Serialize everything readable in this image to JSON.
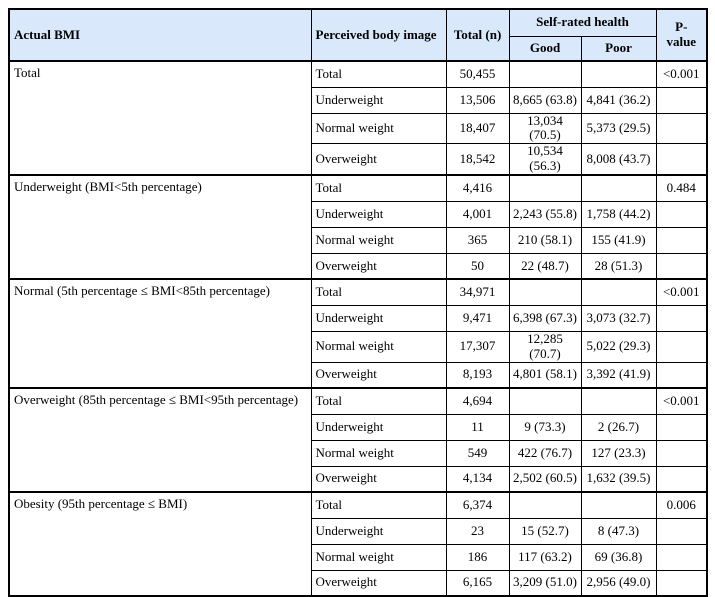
{
  "colors": {
    "header_bg": "#d9e9fb",
    "border": "#000000",
    "text": "#000000",
    "body_bg": "#ffffff"
  },
  "table": {
    "header": {
      "actual_bmi": "Actual BMI",
      "perceived_body_image": "Perceived body image",
      "total_n": "Total (n)",
      "self_rated_health": "Self-rated health",
      "good": "Good",
      "poor": "Poor",
      "p_value": "P-value"
    },
    "groups": [
      {
        "actual_bmi": "Total",
        "p_value": "<0.001",
        "rows": [
          {
            "perceived": "Total",
            "total": "50,455",
            "good": "",
            "poor": ""
          },
          {
            "perceived": "Underweight",
            "total": "13,506",
            "good": "8,665 (63.8)",
            "poor": "4,841 (36.2)"
          },
          {
            "perceived": "Normal weight",
            "total": "18,407",
            "good": "13,034 (70.5)",
            "poor": "5,373 (29.5)"
          },
          {
            "perceived": "Overweight",
            "total": "18,542",
            "good": "10,534 (56.3)",
            "poor": "8,008 (43.7)"
          }
        ]
      },
      {
        "actual_bmi": "Underweight (BMI<5th percentage)",
        "p_value": "0.484",
        "rows": [
          {
            "perceived": "Total",
            "total": "4,416",
            "good": "",
            "poor": ""
          },
          {
            "perceived": "Underweight",
            "total": "4,001",
            "good": "2,243 (55.8)",
            "poor": "1,758 (44.2)"
          },
          {
            "perceived": "Normal weight",
            "total": "365",
            "good": "210 (58.1)",
            "poor": "155 (41.9)"
          },
          {
            "perceived": "Overweight",
            "total": "50",
            "good": "22 (48.7)",
            "poor": "28 (51.3)"
          }
        ]
      },
      {
        "actual_bmi": "Normal (5th percentage ≤ BMI<85th percentage)",
        "p_value": "<0.001",
        "rows": [
          {
            "perceived": "Total",
            "total": "34,971",
            "good": "",
            "poor": ""
          },
          {
            "perceived": "Underweight",
            "total": "9,471",
            "good": "6,398 (67.3)",
            "poor": "3,073 (32.7)"
          },
          {
            "perceived": "Normal weight",
            "total": "17,307",
            "good": "12,285 (70.7)",
            "poor": "5,022 (29.3)"
          },
          {
            "perceived": "Overweight",
            "total": "8,193",
            "good": "4,801 (58.1)",
            "poor": "3,392 (41.9)"
          }
        ]
      },
      {
        "actual_bmi": "Overweight (85th percentage ≤ BMI<95th percentage)",
        "p_value": "<0.001",
        "rows": [
          {
            "perceived": "Total",
            "total": "4,694",
            "good": "",
            "poor": ""
          },
          {
            "perceived": "Underweight",
            "total": "11",
            "good": "9 (73.3)",
            "poor": "2 (26.7)"
          },
          {
            "perceived": "Normal weight",
            "total": "549",
            "good": "422 (76.7)",
            "poor": "127 (23.3)"
          },
          {
            "perceived": "Overweight",
            "total": "4,134",
            "good": "2,502 (60.5)",
            "poor": "1,632 (39.5)"
          }
        ]
      },
      {
        "actual_bmi": "Obesity (95th percentage ≤ BMI)",
        "p_value": "0.006",
        "rows": [
          {
            "perceived": "Total",
            "total": "6,374",
            "good": "",
            "poor": ""
          },
          {
            "perceived": "Underweight",
            "total": "23",
            "good": "15 (52.7)",
            "poor": "8 (47.3)"
          },
          {
            "perceived": "Normal weight",
            "total": "186",
            "good": "117 (63.2)",
            "poor": "69 (36.8)"
          },
          {
            "perceived": "Overweight",
            "total": "6,165",
            "good": "3,209 (51.0)",
            "poor": "2,956 (49.0)"
          }
        ]
      }
    ]
  }
}
